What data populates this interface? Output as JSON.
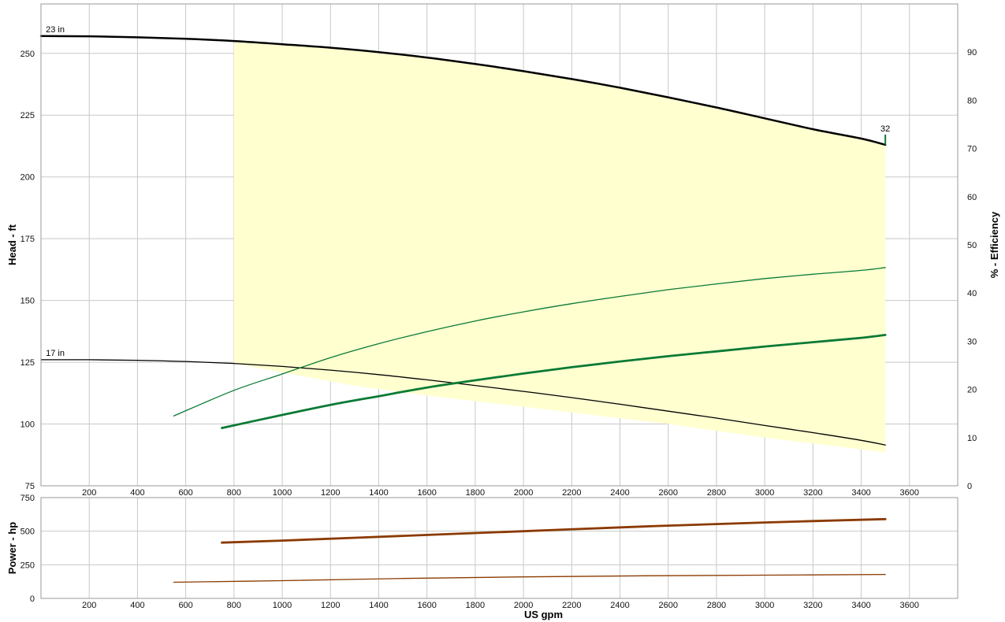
{
  "chart_data": [
    {
      "type": "line",
      "panel": "head-efficiency",
      "ylabel": "Head - ft",
      "y2label": "% - Efficiency",
      "xlim": [
        0,
        3800
      ],
      "ylim": [
        75,
        270
      ],
      "y2lim": [
        0,
        100
      ],
      "grid": true,
      "x_ticks": [
        200,
        400,
        600,
        800,
        1000,
        1200,
        1400,
        1600,
        1800,
        2000,
        2200,
        2400,
        2600,
        2800,
        3000,
        3200,
        3400,
        3600
      ],
      "y_ticks": [
        75,
        100,
        125,
        150,
        175,
        200,
        225,
        250
      ],
      "y2_ticks": [
        0,
        10,
        20,
        30,
        40,
        50,
        60,
        70,
        80,
        90
      ],
      "region_color": "#FFFFD0",
      "operating_region": {
        "upper": [
          [
            800,
            255
          ],
          [
            1000,
            253.7
          ],
          [
            1400,
            250.5
          ],
          [
            1800,
            245.7
          ],
          [
            2200,
            239.6
          ],
          [
            2600,
            232.2
          ],
          [
            3000,
            223.7
          ],
          [
            3400,
            215.5
          ],
          [
            3500,
            213
          ]
        ],
        "lower": [
          [
            3500,
            88.5
          ],
          [
            3000,
            94.5
          ],
          [
            2600,
            100
          ],
          [
            2000,
            107
          ],
          [
            1600,
            111.5
          ],
          [
            1300,
            115.5
          ],
          [
            1050,
            120
          ],
          [
            800,
            124.5
          ]
        ]
      },
      "series": [
        {
          "name": "23 in",
          "axis": "head",
          "color": "#000000",
          "width": 2.5,
          "x": [
            0,
            200,
            400,
            600,
            800,
            1000,
            1200,
            1400,
            1600,
            1800,
            2000,
            2200,
            2400,
            2600,
            2800,
            3000,
            3200,
            3400,
            3500
          ],
          "y": [
            257,
            256.9,
            256.5,
            255.9,
            255,
            253.7,
            252.3,
            250.5,
            248.3,
            245.7,
            242.8,
            239.6,
            236.1,
            232.2,
            228.1,
            223.7,
            219.3,
            215.5,
            213
          ]
        },
        {
          "name": "17 in",
          "axis": "head",
          "color": "#000000",
          "width": 1.3,
          "x": [
            0,
            200,
            400,
            600,
            800,
            1000,
            1200,
            1400,
            1600,
            1800,
            2000,
            2200,
            2400,
            2600,
            2800,
            3000,
            3200,
            3400,
            3500
          ],
          "y": [
            126,
            126,
            125.8,
            125.3,
            124.5,
            123.3,
            121.8,
            120,
            117.9,
            115.6,
            113.2,
            110.7,
            108,
            105.2,
            102.4,
            99.4,
            96.5,
            93.4,
            91.5
          ]
        },
        {
          "axis": "efficiency",
          "color": "#0A7A35",
          "width": 1.3,
          "x": [
            550,
            800,
            1000,
            1200,
            1400,
            1600,
            1800,
            2000,
            2200,
            2400,
            2600,
            2800,
            3000,
            3200,
            3400,
            3500
          ],
          "y": [
            14.5,
            19.8,
            23.2,
            26.6,
            29.5,
            32,
            34.2,
            36.1,
            37.8,
            39.3,
            40.7,
            41.9,
            43,
            43.9,
            44.7,
            45.3
          ]
        },
        {
          "axis": "efficiency",
          "color": "#0A7A35",
          "width": 2.8,
          "x": [
            750,
            1000,
            1200,
            1400,
            1600,
            1800,
            2000,
            2200,
            2400,
            2600,
            2800,
            3000,
            3200,
            3400,
            3500
          ],
          "y": [
            12,
            14.7,
            16.8,
            18.6,
            20.4,
            21.9,
            23.3,
            24.6,
            25.8,
            26.9,
            27.9,
            28.9,
            29.8,
            30.7,
            31.3
          ]
        }
      ],
      "annotations": [
        {
          "text": "23 in",
          "x": 20,
          "y": 257
        },
        {
          "text": "17 in",
          "x": 20,
          "y": 126
        },
        {
          "text": "32",
          "x": 3500,
          "y": 213
        }
      ]
    },
    {
      "type": "line",
      "panel": "power",
      "xlabel": "US gpm",
      "ylabel": "Power - hp",
      "xlim": [
        0,
        3800
      ],
      "ylim": [
        0,
        750
      ],
      "grid": true,
      "x_ticks": [
        200,
        400,
        600,
        800,
        1000,
        1200,
        1400,
        1600,
        1800,
        2000,
        2200,
        2400,
        2600,
        2800,
        3000,
        3200,
        3400,
        3600
      ],
      "y_ticks": [
        0,
        250,
        500,
        750
      ],
      "series": [
        {
          "color": "#8B3A00",
          "width": 2.8,
          "x": [
            750,
            1000,
            1500,
            2000,
            2500,
            3000,
            3500
          ],
          "y": [
            415,
            430,
            465,
            500,
            535,
            565,
            590
          ]
        },
        {
          "color": "#8B3A00",
          "width": 1.3,
          "x": [
            550,
            1000,
            1500,
            2000,
            2500,
            3000,
            3500
          ],
          "y": [
            120,
            132,
            148,
            160,
            168,
            173,
            178
          ]
        }
      ]
    }
  ]
}
